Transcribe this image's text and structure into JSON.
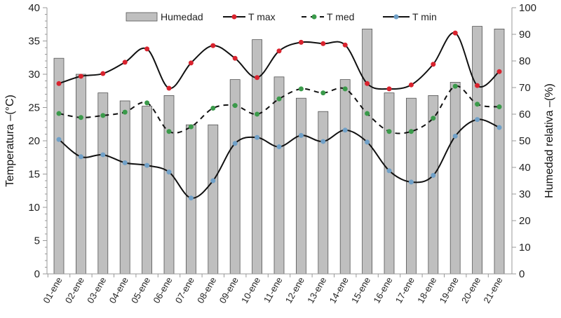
{
  "chart_data": {
    "type": "bar+line",
    "categories": [
      "01-ene",
      "02-ene",
      "03-ene",
      "04-ene",
      "05-ene",
      "06-ene",
      "07-ene",
      "08-ene",
      "09-ene",
      "10-ene",
      "11-ene",
      "12-ene",
      "13-ene",
      "14-ene",
      "15-ene",
      "16-ene",
      "17-ene",
      "18-ene",
      "19-ene",
      "20-ene",
      "21-ene"
    ],
    "ylabel": "Temperatura –(°C)",
    "y2label": "Humedad relativa –(%)",
    "ylim": [
      0,
      40
    ],
    "y2lim": [
      0,
      100
    ],
    "yticks": [
      "0",
      "5",
      "10",
      "15",
      "20",
      "25",
      "30",
      "35",
      "40"
    ],
    "y2ticks": [
      "0",
      "10",
      "20",
      "30",
      "40",
      "50",
      "60",
      "70",
      "80",
      "90",
      "100"
    ],
    "legend_position": "top",
    "series": [
      {
        "name": "Humedad",
        "type": "bar",
        "axis": "right",
        "color": "#bfbfbf",
        "values": [
          81,
          75,
          68,
          65,
          63,
          67,
          56,
          56,
          73,
          88,
          74,
          66,
          61,
          73,
          92,
          68,
          66,
          67,
          72,
          93,
          92
        ]
      },
      {
        "name": "T max",
        "type": "line",
        "axis": "left",
        "color": "#d9232e",
        "dash": false,
        "values": [
          28.6,
          29.7,
          30.1,
          31.8,
          33.8,
          27.9,
          31.7,
          34.3,
          32.4,
          29.5,
          33.5,
          34.8,
          34.6,
          34.4,
          28.6,
          27.8,
          28.4,
          31.5,
          36.2,
          28.3,
          30.4
        ]
      },
      {
        "name": "T med",
        "type": "line",
        "axis": "left",
        "color": "#3a9a4a",
        "dash": true,
        "values": [
          24.1,
          23.5,
          23.8,
          24.3,
          25.7,
          21.4,
          22.1,
          24.9,
          25.3,
          24.0,
          26.3,
          27.8,
          27.2,
          27.8,
          24.1,
          21.4,
          21.4,
          23.4,
          28.2,
          25.5,
          25.1
        ]
      },
      {
        "name": "T min",
        "type": "line",
        "axis": "left",
        "color": "#6fa0c8",
        "dash": false,
        "values": [
          20.2,
          17.6,
          17.9,
          16.7,
          16.3,
          15.3,
          11.4,
          14.0,
          19.6,
          20.5,
          19.1,
          20.8,
          19.9,
          21.6,
          19.8,
          15.5,
          13.8,
          14.8,
          20.7,
          23.2,
          22.0
        ]
      }
    ]
  }
}
